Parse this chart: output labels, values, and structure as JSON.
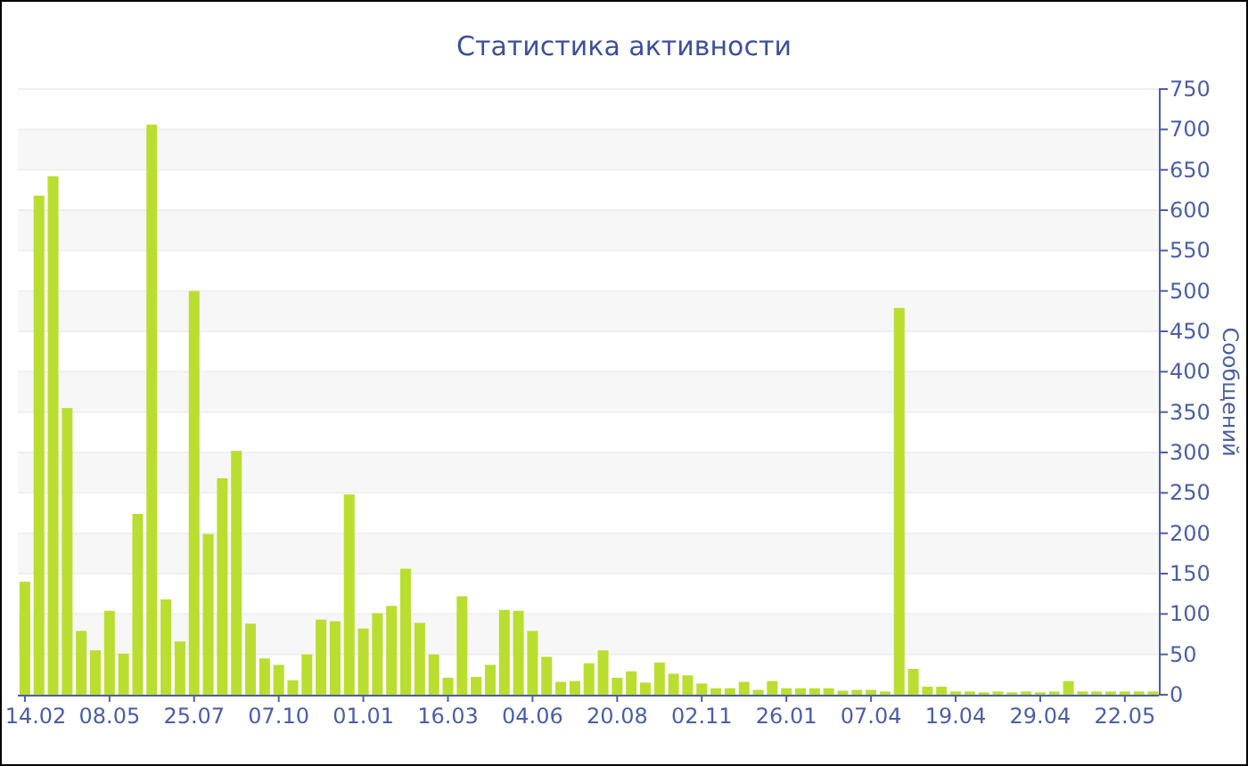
{
  "chart_data": {
    "type": "bar",
    "title": "Статистика активности",
    "ylabel": "Сообщений",
    "categories": [
      "14.02",
      null,
      null,
      null,
      null,
      null,
      "08.05",
      null,
      null,
      null,
      null,
      null,
      "25.07",
      null,
      null,
      null,
      null,
      null,
      "07.10",
      null,
      null,
      null,
      null,
      null,
      "01.01",
      null,
      null,
      null,
      null,
      null,
      "16.03",
      null,
      null,
      null,
      null,
      null,
      "04.06",
      null,
      null,
      null,
      null,
      null,
      "20.08",
      null,
      null,
      null,
      null,
      null,
      "02.11",
      null,
      null,
      null,
      null,
      null,
      "26.01",
      null,
      null,
      null,
      null,
      null,
      "07.04",
      null,
      null,
      null,
      null,
      null,
      "19.04",
      null,
      null,
      null,
      null,
      null,
      "29.04",
      null,
      null,
      null,
      null,
      null,
      "22.05",
      null,
      null
    ],
    "values": [
      140,
      618,
      642,
      355,
      79,
      55,
      104,
      51,
      224,
      706,
      118,
      66,
      500,
      199,
      268,
      302,
      88,
      45,
      37,
      18,
      50,
      93,
      91,
      248,
      82,
      101,
      110,
      156,
      89,
      50,
      21,
      122,
      22,
      37,
      105,
      104,
      79,
      47,
      16,
      17,
      39,
      55,
      21,
      29,
      15,
      40,
      26,
      24,
      14,
      8,
      8,
      16,
      6,
      17,
      8,
      8,
      8,
      8,
      5,
      6,
      6,
      4,
      479,
      32,
      10,
      10,
      4,
      4,
      3,
      4,
      3,
      4,
      3,
      4,
      17,
      4,
      4,
      4,
      4,
      4,
      4
    ],
    "color": "#bade30",
    "ylim": [
      0,
      750
    ],
    "yticks": [
      0,
      50,
      100,
      150,
      200,
      250,
      300,
      350,
      400,
      450,
      500,
      550,
      600,
      650,
      700,
      750
    ],
    "grid": "y"
  }
}
